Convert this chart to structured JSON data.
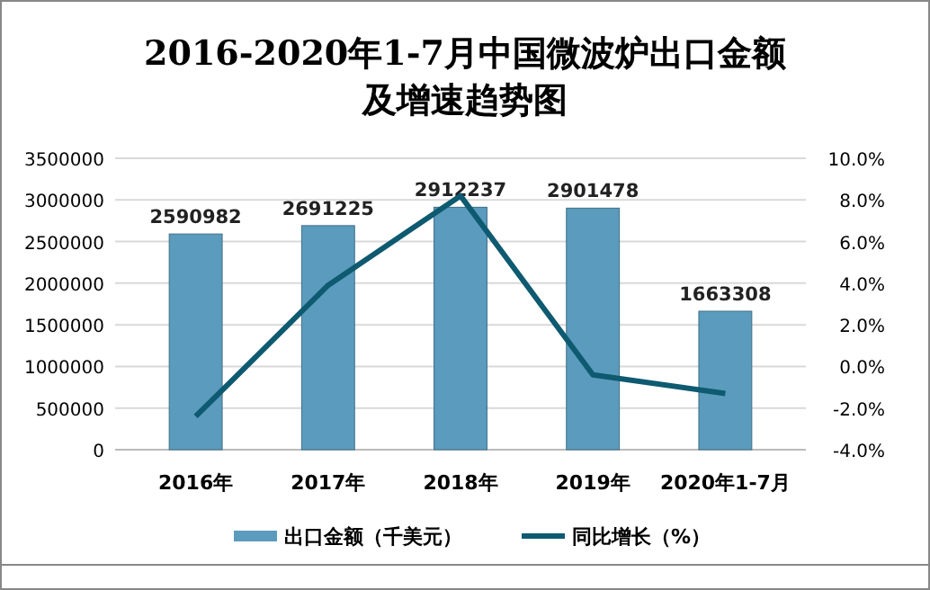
{
  "chart_data": {
    "type": "bar",
    "title": "2016-2020年1-7月中国微波炉出口金额及增速趋势图",
    "categories": [
      "2016年",
      "2017年",
      "2018年",
      "2019年",
      "2020年1-7月"
    ],
    "series": [
      {
        "name": "出口金额（千美元）",
        "color": "#5b9bbd",
        "values": [
          2590982,
          2691225,
          2912237,
          2901478,
          1663308
        ],
        "value_labels": [
          "2590982",
          "2691225",
          "2912237",
          "2901478",
          "1663308"
        ]
      },
      {
        "name": "同比增长（%）",
        "color": "#0e5a70",
        "type": "line",
        "axis": "y2",
        "values": [
          -2.4,
          3.9,
          8.2,
          -0.4,
          -1.3
        ]
      }
    ],
    "ylim": [
      0,
      3500000
    ],
    "yticks": [
      0,
      500000,
      1000000,
      1500000,
      2000000,
      2500000,
      3000000,
      3500000
    ],
    "y2lim": [
      -4,
      10
    ],
    "y2ticks": [
      {
        "value": -4,
        "label": "-4.0%"
      },
      {
        "value": -2,
        "label": "-2.0%"
      },
      {
        "value": 0,
        "label": "0.0%"
      },
      {
        "value": 2,
        "label": "2.0%"
      },
      {
        "value": 4,
        "label": "4.0%"
      },
      {
        "value": 6,
        "label": "6.0%"
      },
      {
        "value": 8,
        "label": "8.0%"
      },
      {
        "value": 10,
        "label": "10.0%"
      }
    ],
    "grid": "y",
    "legend": "bottom",
    "marker": "none"
  }
}
